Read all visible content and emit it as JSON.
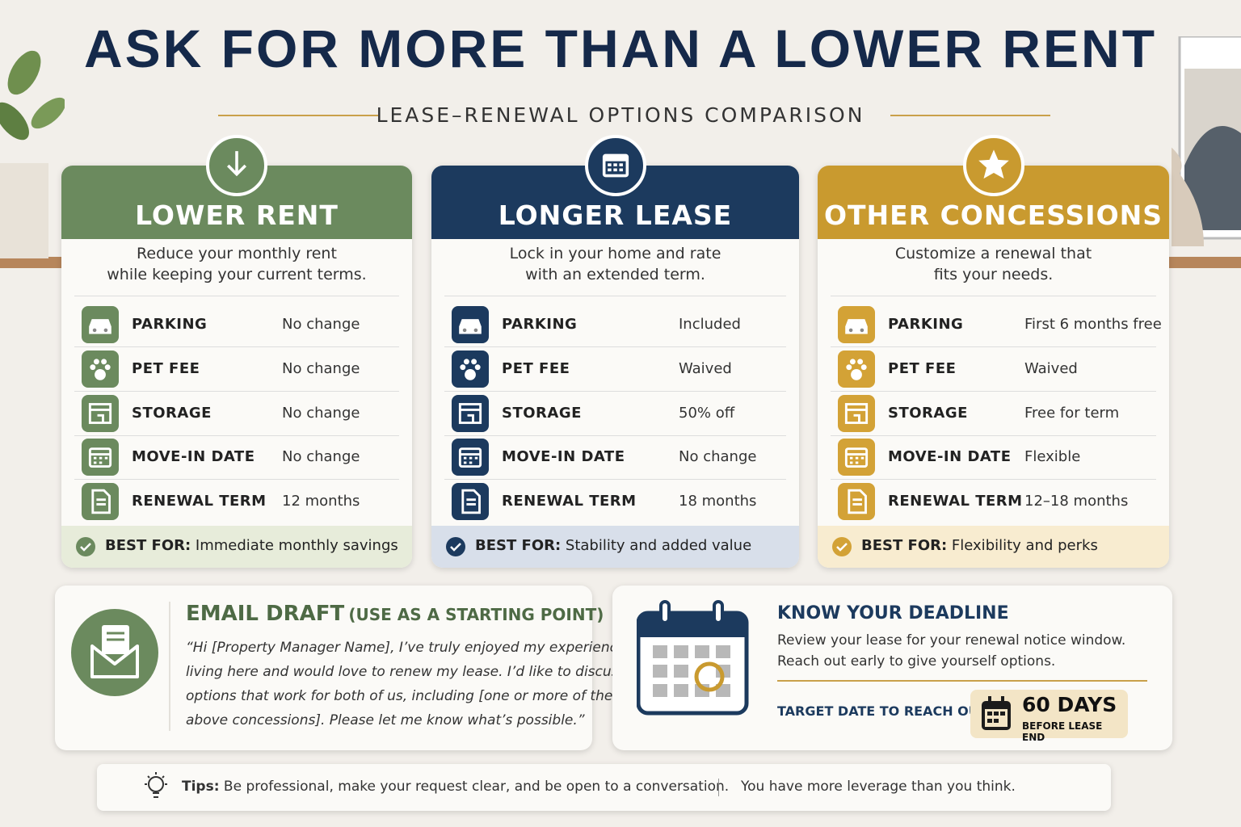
{
  "header": {
    "title": "ASK FOR MORE THAN A LOWER RENT",
    "subtitle": "LEASE–RENEWAL OPTIONS COMPARISON"
  },
  "columns": [
    {
      "title": "LOWER RENT",
      "description": [
        "Reduce your monthly rent",
        "while keeping your current terms."
      ],
      "rows": [
        [
          "PARKING",
          "No change"
        ],
        [
          "PET FEE",
          "No change"
        ],
        [
          "STORAGE",
          "No change"
        ],
        [
          "MOVE-IN DATE",
          "No change"
        ],
        [
          "RENEWAL TERM",
          "12 months"
        ]
      ],
      "best_for": {
        "label": "BEST FOR:",
        "text": "Immediate monthly savings"
      }
    },
    {
      "title": "LONGER LEASE",
      "description": [
        "Lock in your home and rate",
        "with an extended term."
      ],
      "rows": [
        [
          "PARKING",
          "Included"
        ],
        [
          "PET FEE",
          "Waived"
        ],
        [
          "STORAGE",
          "50% off"
        ],
        [
          "MOVE-IN DATE",
          "No change"
        ],
        [
          "RENEWAL TERM",
          "18 months"
        ]
      ],
      "best_for": {
        "label": "BEST FOR:",
        "text": "Stability and added value"
      }
    },
    {
      "title": "OTHER CONCESSIONS",
      "description": [
        "Customize a renewal that",
        "fits your needs."
      ],
      "rows": [
        [
          "PARKING",
          "First 6 months free"
        ],
        [
          "PET FEE",
          "Waived"
        ],
        [
          "STORAGE",
          "Free for term"
        ],
        [
          "MOVE-IN DATE",
          "Flexible"
        ],
        [
          "RENEWAL TERM",
          "12–18 months"
        ]
      ],
      "best_for": {
        "label": "BEST FOR:",
        "text": "Flexibility and perks"
      }
    }
  ],
  "email": {
    "title": "EMAIL DRAFT",
    "subtitle": "(USE AS A STARTING POINT)",
    "body": [
      "“Hi [Property Manager Name], I’ve truly enjoyed my experience",
      "living here and would love to renew my lease. I’d like to discuss",
      "options that work for both of us, including [one or more of the",
      "above concessions]. Please let me know what’s possible.”"
    ]
  },
  "deadline": {
    "title": "KNOW YOUR DEADLINE",
    "text": [
      "Review your lease for your renewal notice window.",
      "Reach out early to give yourself options."
    ],
    "target_label": "TARGET DATE TO REACH OUT:",
    "days": "60 DAYS",
    "days_note": "BEFORE LEASE END"
  },
  "tips": {
    "label": "Tips:",
    "text": "Be professional, make your request clear, and be open to a conversation.",
    "note": "You have more leverage than you think."
  }
}
